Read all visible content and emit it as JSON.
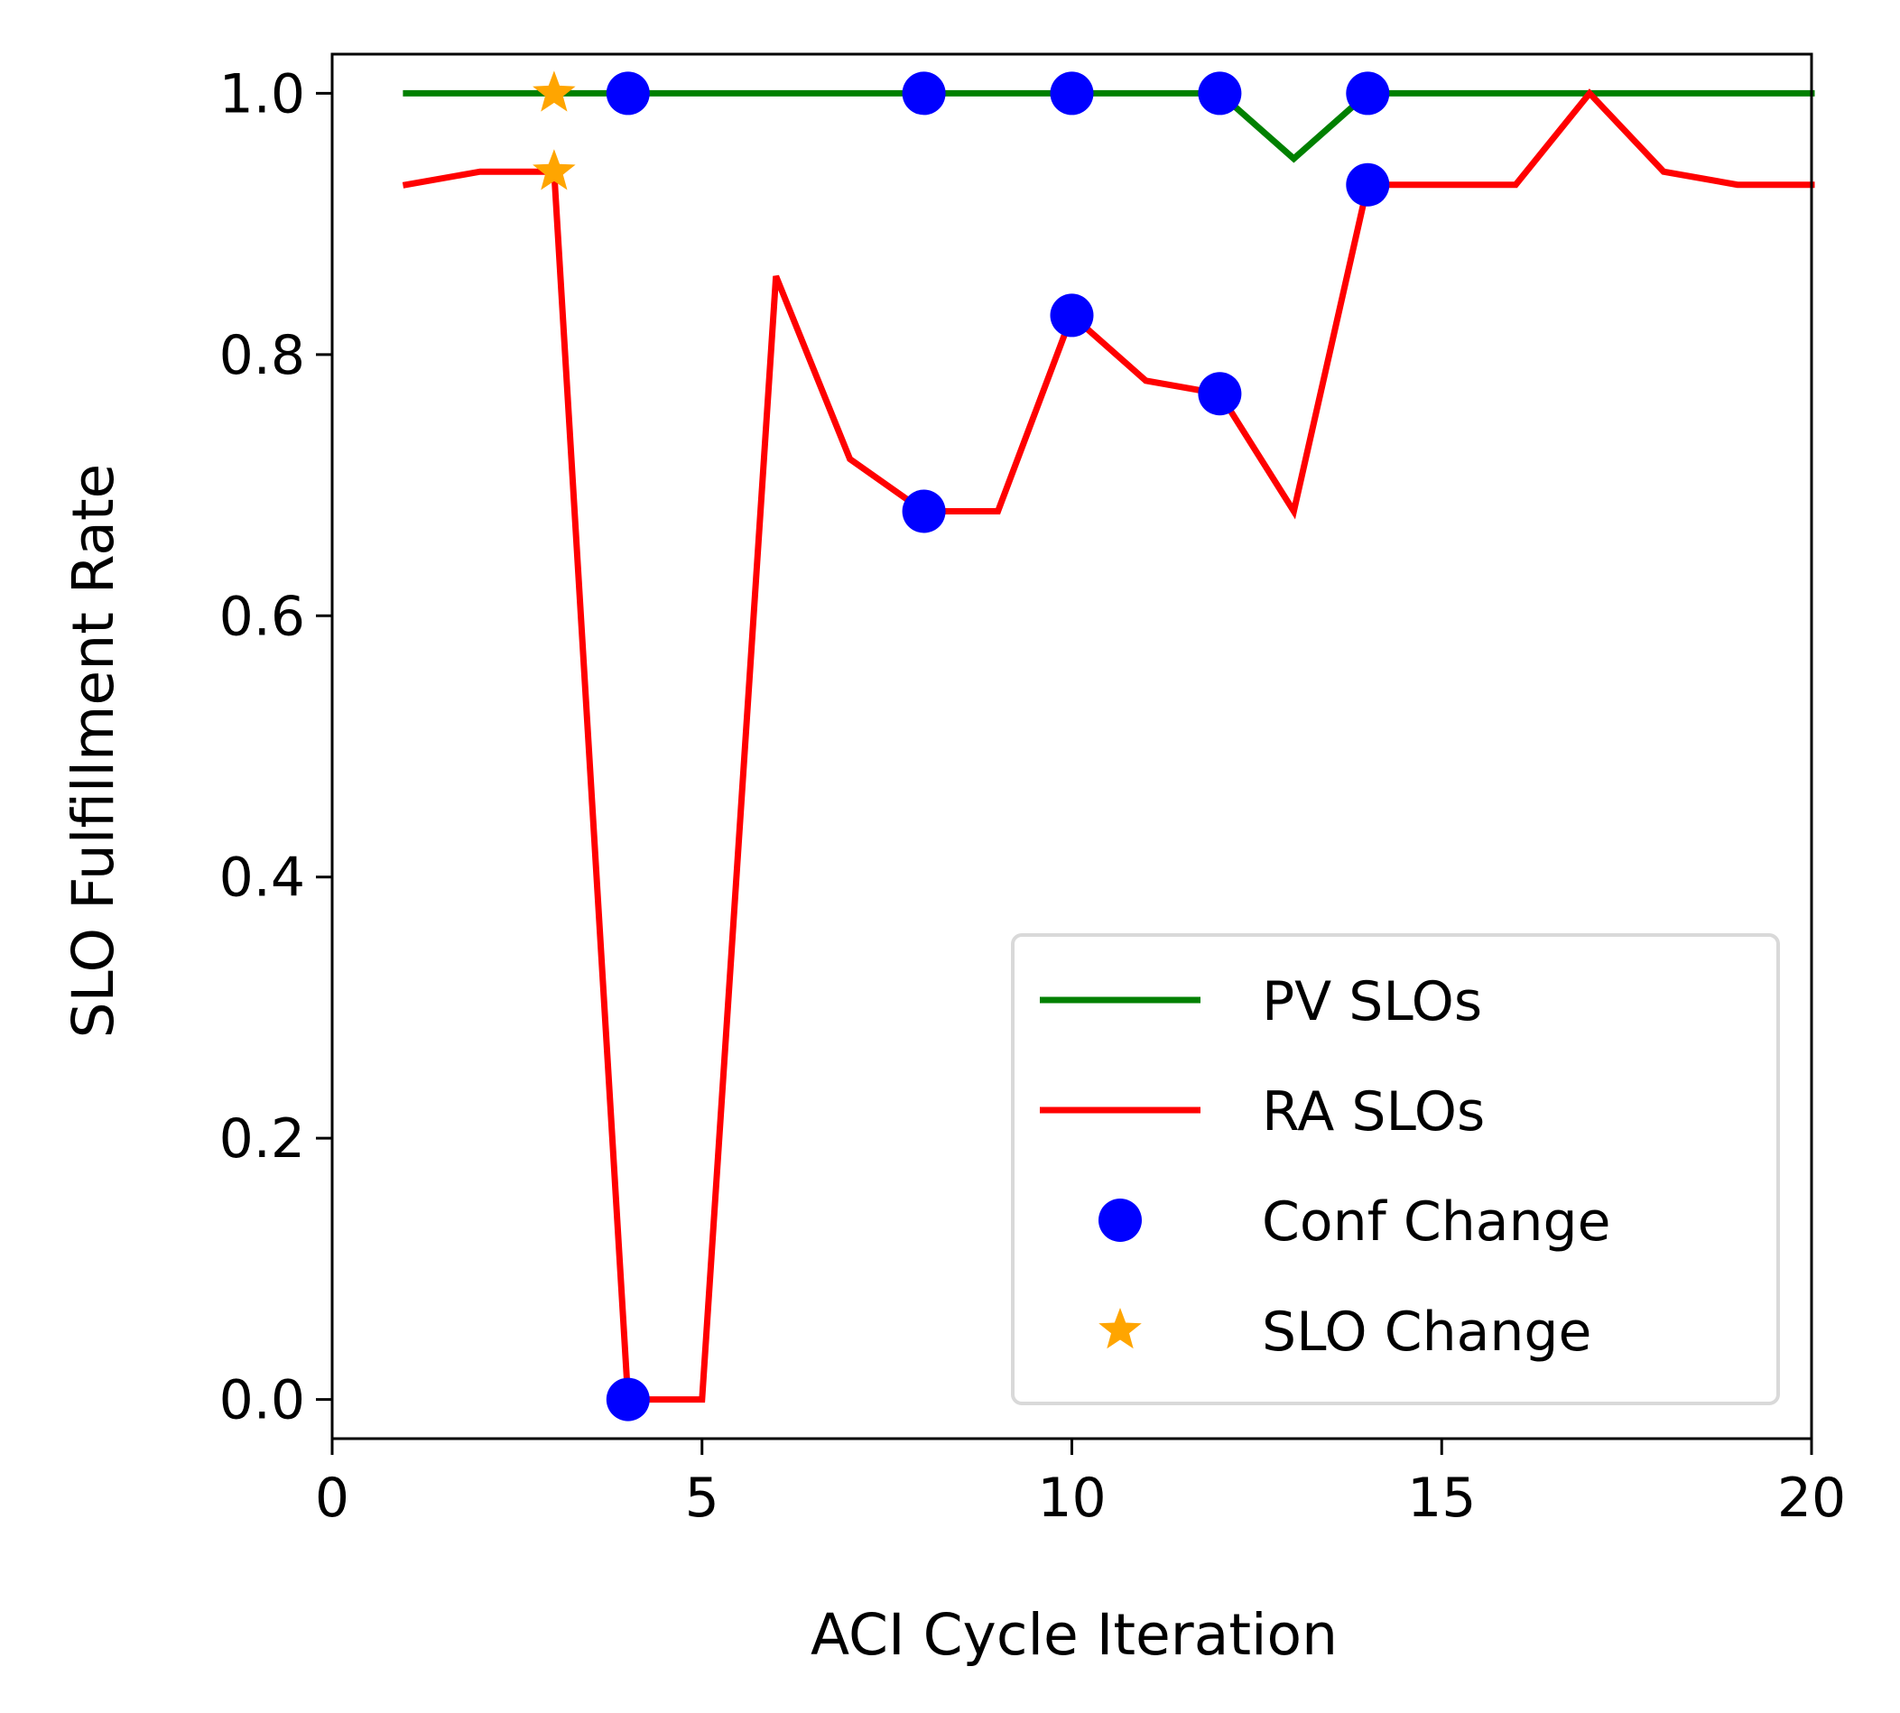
{
  "chart_data": {
    "type": "line",
    "title": "",
    "xlabel": "ACI Cycle Iteration",
    "ylabel": "SLO Fulfillment Rate",
    "xlim": [
      0,
      20
    ],
    "ylim": [
      -0.03,
      1.03
    ],
    "xticks": [
      0,
      5,
      10,
      15,
      20
    ],
    "yticks": [
      0.0,
      0.2,
      0.4,
      0.6,
      0.8,
      1.0
    ],
    "xtick_labels": [
      "0",
      "5",
      "10",
      "15",
      "20"
    ],
    "ytick_labels": [
      "0.0",
      "0.2",
      "0.4",
      "0.6",
      "0.8",
      "1.0"
    ],
    "grid": false,
    "legend_position": "lower-right",
    "series": [
      {
        "name": "PV SLOs",
        "kind": "line",
        "color": "#008000",
        "x": [
          1,
          2,
          3,
          4,
          5,
          6,
          7,
          8,
          9,
          10,
          11,
          12,
          13,
          14,
          15,
          16,
          17,
          18,
          19,
          20
        ],
        "values": [
          1,
          1,
          1,
          1,
          1,
          1,
          1,
          1,
          1,
          1,
          1,
          1,
          0.95,
          1,
          1,
          1,
          1,
          1,
          1,
          1
        ]
      },
      {
        "name": "RA SLOs",
        "kind": "line",
        "color": "#ff0000",
        "x": [
          1,
          2,
          3,
          4,
          5,
          6,
          7,
          8,
          9,
          10,
          11,
          12,
          13,
          14,
          15,
          16,
          17,
          18,
          19,
          20
        ],
        "values": [
          0.93,
          0.94,
          0.94,
          0.0,
          0.0,
          0.86,
          0.72,
          0.68,
          0.68,
          0.83,
          0.78,
          0.77,
          0.68,
          0.93,
          0.93,
          0.93,
          1.0,
          0.94,
          0.93,
          0.93
        ]
      },
      {
        "name": "Conf Change",
        "kind": "scatter",
        "marker": "circle",
        "color": "#0000ff",
        "x": [
          4,
          8,
          10,
          12,
          14,
          4,
          8,
          10,
          12,
          14
        ],
        "values": [
          1,
          1,
          1,
          1,
          1,
          0.0,
          0.68,
          0.83,
          0.77,
          0.93
        ]
      },
      {
        "name": "SLO Change",
        "kind": "scatter",
        "marker": "star",
        "color": "#ffa500",
        "x": [
          3,
          3
        ],
        "values": [
          1.0,
          0.94
        ]
      }
    ]
  }
}
